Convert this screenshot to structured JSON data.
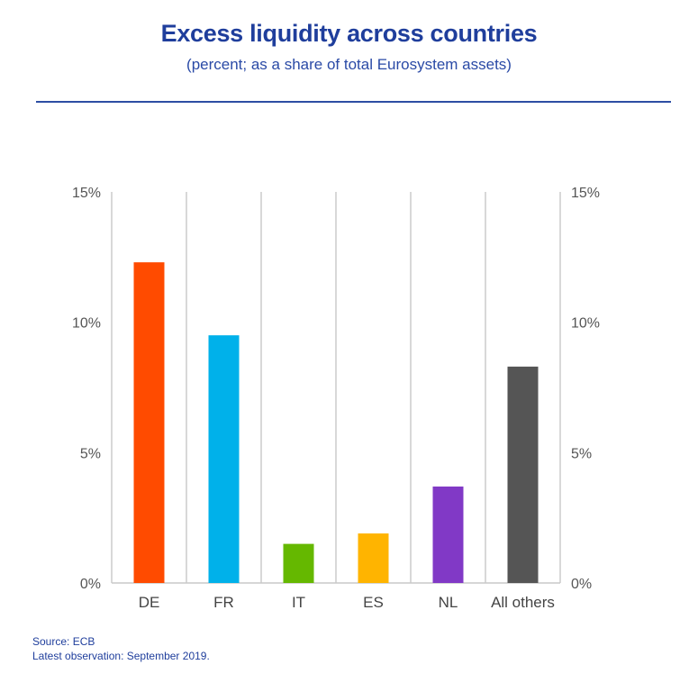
{
  "title": "Excess liquidity across countries",
  "subtitle": "(percent; as a share of total Eurosystem assets)",
  "chart_data": {
    "type": "bar",
    "categories": [
      "DE",
      "FR",
      "IT",
      "ES",
      "NL",
      "All others"
    ],
    "values": [
      12.3,
      9.5,
      1.5,
      1.9,
      3.7,
      8.3
    ],
    "colors": [
      "#ff4b00",
      "#00b1ea",
      "#65b800",
      "#ffb400",
      "#8139c6",
      "#555555"
    ],
    "ylim": [
      0,
      15
    ],
    "yticks": [
      0,
      5,
      10,
      15
    ],
    "ytick_labels": [
      "0%",
      "5%",
      "10%",
      "15%"
    ],
    "secondary_axis": true,
    "grid": "vertical"
  },
  "footer": {
    "source": "Source: ECB",
    "note": "Latest observation: September 2019."
  }
}
